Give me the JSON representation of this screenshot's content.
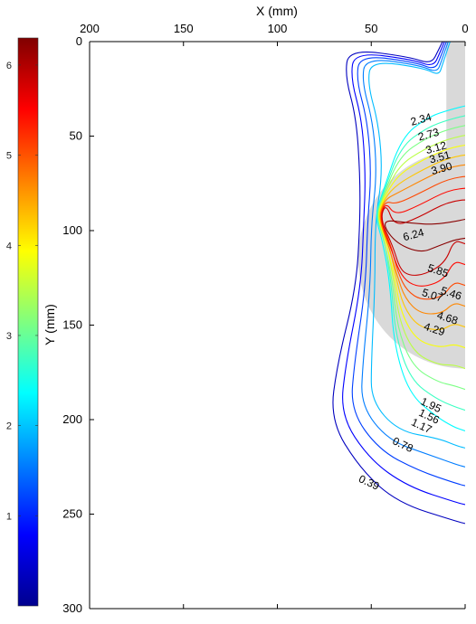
{
  "chart_data": {
    "type": "contour",
    "xlabel": "X (mm)",
    "ylabel": "Y (mm)",
    "xlim": [
      200,
      0
    ],
    "ylim": [
      0,
      300
    ],
    "x_ticks": [
      "200",
      "150",
      "100",
      "50",
      "0"
    ],
    "y_ticks": [
      "0",
      "50",
      "100",
      "150",
      "200",
      "250",
      "300"
    ],
    "y_reversed": true,
    "x_reversed": true,
    "colorbar": {
      "colormap": "jet",
      "range": [
        0,
        6.3
      ],
      "ticks": [
        "1",
        "2",
        "3",
        "4",
        "5",
        "6"
      ]
    },
    "contour_labels": [
      "0.39",
      "0.78",
      "1.17",
      "1.56",
      "1.95",
      "2.34",
      "2.73",
      "3.12",
      "3.51",
      "3.90",
      "4.29",
      "4.68",
      "5.07",
      "5.46",
      "5.85",
      "6.24"
    ],
    "level_values": [
      0.39,
      0.78,
      1.17,
      1.56,
      1.95,
      2.34,
      2.73,
      3.12,
      3.51,
      3.9,
      4.29,
      4.68,
      5.07,
      5.46,
      5.85,
      6.24
    ],
    "label_positions_data": [
      {
        "label": "0.39",
        "x": 52,
        "y": 235
      },
      {
        "label": "0.78",
        "x": 34,
        "y": 215
      },
      {
        "label": "1.17",
        "x": 24,
        "y": 205
      },
      {
        "label": "1.56",
        "x": 20,
        "y": 200
      },
      {
        "label": "1.95",
        "x": 19,
        "y": 194
      },
      {
        "label": "2.34",
        "x": 23,
        "y": 43
      },
      {
        "label": "2.73",
        "x": 19,
        "y": 51
      },
      {
        "label": "3.12",
        "x": 15,
        "y": 58
      },
      {
        "label": "3.51",
        "x": 13,
        "y": 63
      },
      {
        "label": "3.90",
        "x": 12,
        "y": 69
      },
      {
        "label": "4.29",
        "x": 17,
        "y": 154
      },
      {
        "label": "4.68",
        "x": 10,
        "y": 148
      },
      {
        "label": "5.07",
        "x": 18,
        "y": 136
      },
      {
        "label": "5.46",
        "x": 8,
        "y": 135
      },
      {
        "label": "5.85",
        "x": 15,
        "y": 123
      },
      {
        "label": "6.24",
        "x": 27,
        "y": 104
      }
    ],
    "shaded_region": {
      "description": "light gray region",
      "ellipse_center": [
        0,
        115
      ],
      "ellipse_radii": [
        57,
        58
      ],
      "strip_x": [
        10,
        0
      ],
      "strip_y": [
        0,
        115
      ]
    },
    "grid": false
  }
}
